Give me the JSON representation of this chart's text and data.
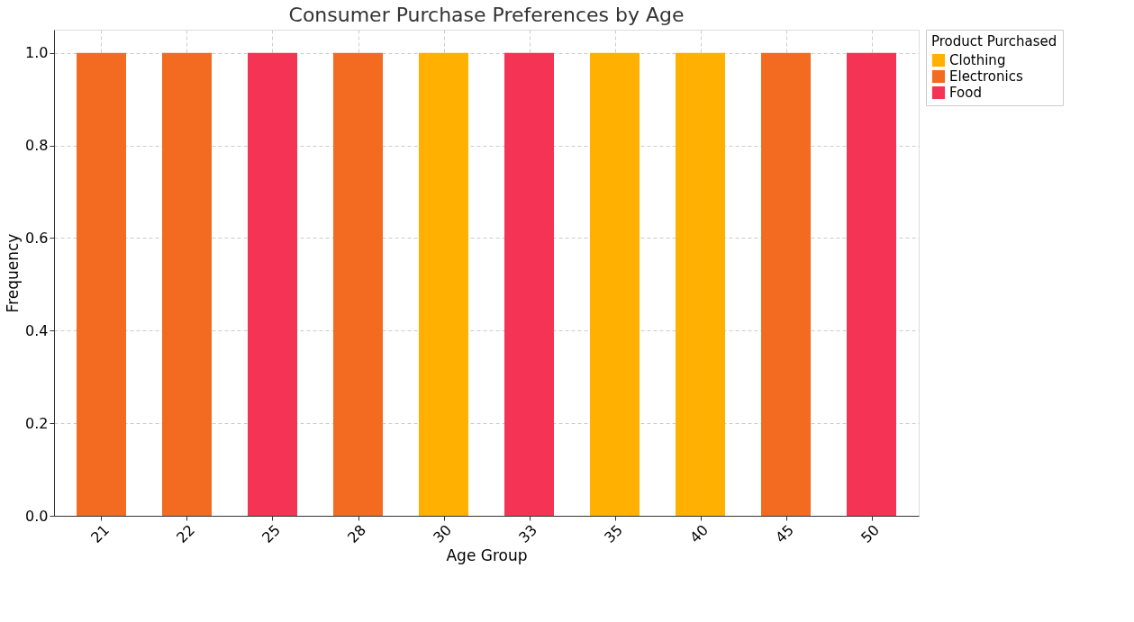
{
  "chart_data": {
    "type": "bar",
    "title": "Consumer Purchase Preferences by Age",
    "xlabel": "Age Group",
    "ylabel": "Frequency",
    "legend_title": "Product Purchased",
    "categories": [
      "21",
      "22",
      "25",
      "28",
      "30",
      "33",
      "35",
      "40",
      "45",
      "50"
    ],
    "series": [
      {
        "name": "Clothing",
        "color": "#ffb000",
        "values": [
          0,
          0,
          0,
          0,
          1,
          0,
          1,
          1,
          0,
          0
        ]
      },
      {
        "name": "Electronics",
        "color": "#f26b21",
        "values": [
          1,
          1,
          0,
          1,
          0,
          0,
          0,
          0,
          1,
          0
        ]
      },
      {
        "name": "Food",
        "color": "#f43355",
        "values": [
          0,
          0,
          1,
          0,
          0,
          1,
          0,
          0,
          0,
          1
        ]
      }
    ],
    "ylim": [
      0,
      1.05
    ],
    "yticks": [
      {
        "value": 0,
        "label": "0.0"
      },
      {
        "value": 0.2,
        "label": "0.2"
      },
      {
        "value": 0.4,
        "label": "0.4"
      },
      {
        "value": 0.6,
        "label": "0.6"
      },
      {
        "value": 0.8,
        "label": "0.8"
      },
      {
        "value": 1,
        "label": "1.0"
      }
    ],
    "grid": true,
    "legend": "top right"
  }
}
